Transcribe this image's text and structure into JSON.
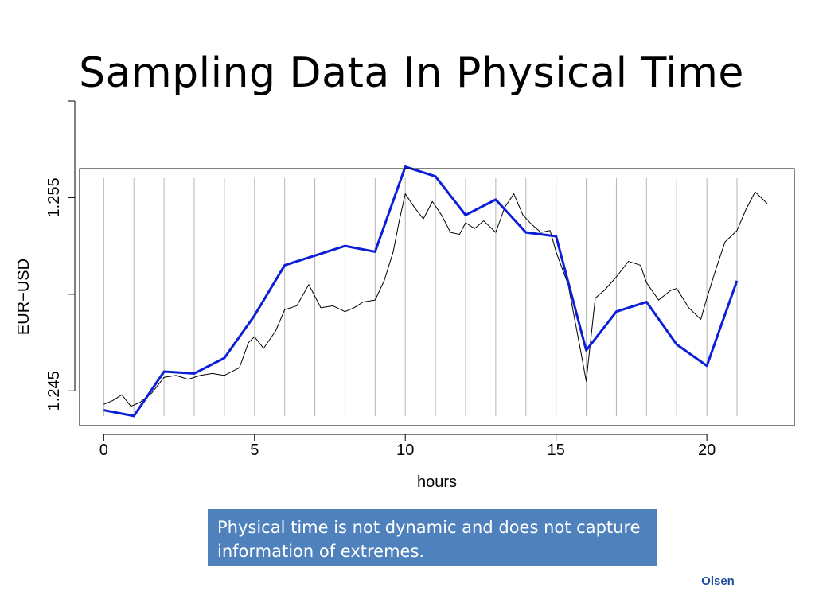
{
  "slide": {
    "title": "Sampling Data In Physical Time",
    "note": "Physical time is not dynamic and does not capture information of extremes.",
    "author": "Olsen"
  },
  "colors": {
    "sampled_line": "#0b1fd6",
    "raw_series": "#000000",
    "sampling_gridlines": "#b4b4b4",
    "note_box": "#4f81bd",
    "author_text": "#1f4e9c"
  },
  "chart_data": {
    "type": "line",
    "title": "",
    "xlabel": "hours",
    "ylabel": "EUR−USD",
    "xlim": [
      -0.8,
      22.9
    ],
    "ylim": [
      1.2432,
      1.2565
    ],
    "x_ticks": [
      0,
      5,
      10,
      15,
      20
    ],
    "x_tick_labels": [
      "0",
      "5",
      "10",
      "15",
      "20"
    ],
    "y_ticks": [
      1.245,
      1.25,
      1.255,
      1.26
    ],
    "y_tick_labels": [
      "1.245",
      "",
      "1.255",
      ""
    ],
    "vertical_gridlines_at_hours": [
      0,
      1,
      2,
      3,
      4,
      5,
      6,
      7,
      8,
      9,
      10,
      11,
      12,
      13,
      14,
      15,
      16,
      17,
      18,
      19,
      20,
      21
    ],
    "grid": "vertical lines at each hour",
    "legend": "none",
    "series": [
      {
        "role": "raw tick data (black, approximate path)",
        "x": [
          0,
          0.3,
          0.6,
          0.9,
          1.2,
          1.6,
          2.0,
          2.4,
          2.8,
          3.2,
          3.6,
          4.0,
          4.5,
          4.8,
          5.0,
          5.3,
          5.7,
          6.0,
          6.4,
          6.8,
          7.2,
          7.6,
          8.0,
          8.3,
          8.6,
          9.0,
          9.3,
          9.6,
          9.8,
          10.0,
          10.3,
          10.6,
          10.9,
          11.2,
          11.5,
          11.8,
          12.0,
          12.3,
          12.6,
          13.0,
          13.3,
          13.6,
          13.9,
          14.2,
          14.5,
          14.8,
          15.0,
          15.4,
          15.8,
          16.0,
          16.3,
          16.6,
          17.0,
          17.4,
          17.8,
          18.0,
          18.4,
          18.8,
          19.0,
          19.4,
          19.8,
          20.0,
          20.3,
          20.6,
          21.0,
          21.3,
          21.6,
          22.0
        ],
        "values": [
          1.2443,
          1.2445,
          1.2448,
          1.2442,
          1.2444,
          1.2449,
          1.2457,
          1.2458,
          1.2456,
          1.2458,
          1.2459,
          1.2458,
          1.2462,
          1.2475,
          1.2478,
          1.2472,
          1.2481,
          1.2492,
          1.2494,
          1.2505,
          1.2493,
          1.2494,
          1.2491,
          1.2493,
          1.2496,
          1.2497,
          1.2507,
          1.2522,
          1.2538,
          1.2552,
          1.2545,
          1.2539,
          1.2548,
          1.2541,
          1.2532,
          1.2531,
          1.2537,
          1.2534,
          1.2538,
          1.2532,
          1.2545,
          1.2552,
          1.2541,
          1.2536,
          1.2532,
          1.2533,
          1.2522,
          1.2505,
          1.2472,
          1.2455,
          1.2498,
          1.2502,
          1.2509,
          1.2517,
          1.2515,
          1.2506,
          1.2497,
          1.2502,
          1.2503,
          1.2493,
          1.2487,
          1.2498,
          1.2513,
          1.2527,
          1.2533,
          1.2544,
          1.2553,
          1.2547
        ]
      },
      {
        "role": "hourly samples (blue)",
        "x": [
          0,
          1,
          2,
          3,
          4,
          5,
          6,
          7,
          8,
          9,
          10,
          11,
          12,
          13,
          14,
          15,
          16,
          17,
          18,
          19,
          20,
          21
        ],
        "values": [
          1.244,
          1.2437,
          1.246,
          1.2459,
          1.2467,
          1.2489,
          1.2515,
          1.252,
          1.2525,
          1.2522,
          1.2566,
          1.2561,
          1.2541,
          1.2549,
          1.2532,
          1.253,
          1.2471,
          1.2491,
          1.2496,
          1.2474,
          1.2463,
          1.2507
        ]
      }
    ]
  }
}
